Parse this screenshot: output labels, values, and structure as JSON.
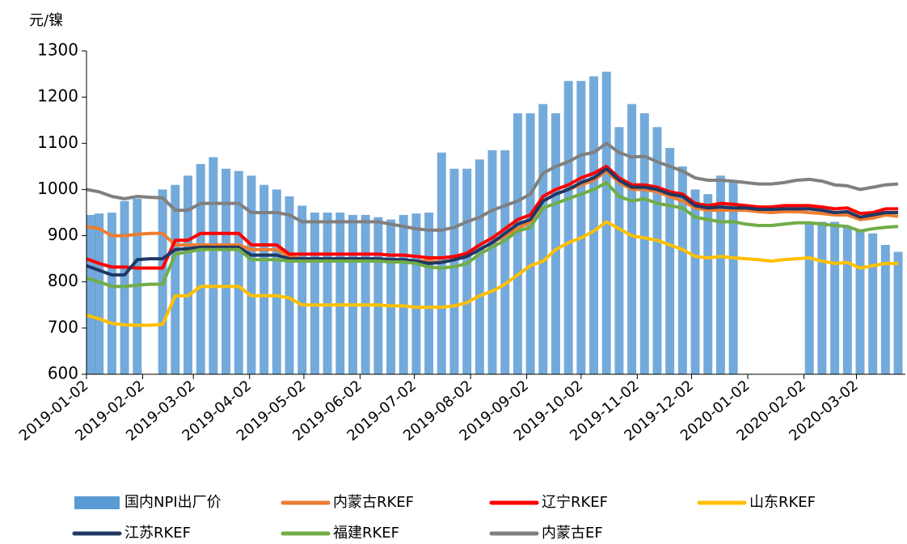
{
  "chart_data": {
    "type": "bar-line",
    "y_label": "元/镍",
    "x": [
      "2019-01-02",
      "2019-01-09",
      "2019-01-16",
      "2019-01-23",
      "2019-01-30",
      "2019-02-06",
      "2019-02-13",
      "2019-02-20",
      "2019-02-27",
      "2019-03-06",
      "2019-03-13",
      "2019-03-20",
      "2019-03-27",
      "2019-04-03",
      "2019-04-10",
      "2019-04-17",
      "2019-04-24",
      "2019-05-01",
      "2019-05-08",
      "2019-05-15",
      "2019-05-22",
      "2019-05-29",
      "2019-06-05",
      "2019-06-12",
      "2019-06-19",
      "2019-06-26",
      "2019-07-03",
      "2019-07-10",
      "2019-07-17",
      "2019-07-24",
      "2019-07-31",
      "2019-08-07",
      "2019-08-14",
      "2019-08-21",
      "2019-08-28",
      "2019-09-04",
      "2019-09-11",
      "2019-09-18",
      "2019-09-25",
      "2019-10-02",
      "2019-10-09",
      "2019-10-16",
      "2019-10-23",
      "2019-10-30",
      "2019-11-06",
      "2019-11-13",
      "2019-11-20",
      "2019-11-27",
      "2019-12-04",
      "2019-12-11",
      "2019-12-18",
      "2019-12-25",
      "2020-01-01",
      "2020-01-08",
      "2020-01-15",
      "2020-01-22",
      "2020-01-29",
      "2020-02-05",
      "2020-02-12",
      "2020-02-19",
      "2020-02-26",
      "2020-03-04",
      "2020-03-11",
      "2020-03-18",
      "2020-03-25"
    ],
    "series": [
      {
        "name": "国内NPI出厂价",
        "kind": "bar",
        "color": "#5b9bd5",
        "values": [
          945,
          948,
          950,
          975,
          980,
          null,
          1000,
          1010,
          1030,
          1055,
          1070,
          1045,
          1040,
          1030,
          1010,
          1000,
          985,
          965,
          950,
          950,
          950,
          945,
          945,
          940,
          935,
          945,
          948,
          950,
          1080,
          1045,
          1045,
          1065,
          1085,
          1085,
          1165,
          1165,
          1185,
          1165,
          1235,
          1235,
          1245,
          1255,
          1135,
          1185,
          1165,
          1135,
          1090,
          1050,
          1000,
          990,
          1030,
          1020,
          null,
          null,
          null,
          null,
          null,
          930,
          930,
          930,
          920,
          910,
          905,
          880,
          865
        ]
      },
      {
        "name": "内蒙古RKEF",
        "kind": "line",
        "color": "#ed7d31",
        "values": [
          920,
          915,
          900,
          900,
          903,
          905,
          905,
          880,
          880,
          880,
          880,
          880,
          880,
          870,
          870,
          870,
          855,
          850,
          850,
          850,
          850,
          850,
          850,
          850,
          848,
          848,
          845,
          845,
          843,
          848,
          855,
          870,
          885,
          900,
          915,
          930,
          975,
          990,
          1000,
          1010,
          1020,
          1040,
          1015,
          1000,
          1000,
          995,
          985,
          975,
          960,
          955,
          955,
          955,
          955,
          952,
          950,
          952,
          952,
          950,
          948,
          945,
          945,
          935,
          938,
          945,
          942
        ]
      },
      {
        "name": "辽宁RKEF",
        "kind": "line",
        "color": "#ff0000",
        "values": [
          850,
          840,
          832,
          832,
          830,
          830,
          830,
          890,
          890,
          905,
          905,
          905,
          905,
          880,
          880,
          880,
          860,
          860,
          860,
          860,
          860,
          860,
          860,
          860,
          858,
          858,
          855,
          852,
          852,
          855,
          862,
          880,
          895,
          915,
          935,
          945,
          985,
          1000,
          1010,
          1025,
          1035,
          1050,
          1025,
          1010,
          1010,
          1005,
          995,
          990,
          970,
          965,
          970,
          968,
          965,
          962,
          962,
          965,
          965,
          965,
          962,
          958,
          960,
          948,
          950,
          958,
          958
        ]
      },
      {
        "name": "山东RKEF",
        "kind": "line",
        "color": "#ffc000",
        "values": [
          728,
          720,
          710,
          707,
          706,
          706,
          708,
          770,
          770,
          790,
          790,
          790,
          790,
          770,
          770,
          770,
          765,
          750,
          750,
          750,
          750,
          750,
          750,
          750,
          748,
          748,
          745,
          745,
          745,
          748,
          755,
          770,
          780,
          795,
          815,
          835,
          845,
          870,
          885,
          895,
          910,
          930,
          915,
          900,
          895,
          890,
          880,
          870,
          855,
          852,
          855,
          852,
          850,
          848,
          845,
          848,
          850,
          852,
          845,
          840,
          842,
          830,
          835,
          840,
          840
        ]
      },
      {
        "name": "江苏RKEF",
        "kind": "line",
        "color": "#1f3864",
        "values": [
          835,
          825,
          815,
          815,
          848,
          850,
          850,
          870,
          872,
          875,
          875,
          875,
          875,
          858,
          858,
          858,
          850,
          850,
          850,
          850,
          850,
          850,
          850,
          850,
          848,
          848,
          845,
          840,
          842,
          848,
          855,
          870,
          885,
          905,
          925,
          935,
          975,
          990,
          1000,
          1015,
          1025,
          1045,
          1020,
          1005,
          1005,
          1000,
          990,
          985,
          965,
          960,
          962,
          960,
          960,
          957,
          957,
          958,
          958,
          958,
          955,
          950,
          952,
          940,
          945,
          950,
          950
        ]
      },
      {
        "name": "福建RKEF",
        "kind": "line",
        "color": "#70ad47",
        "values": [
          808,
          800,
          790,
          790,
          793,
          795,
          795,
          860,
          865,
          870,
          870,
          870,
          870,
          848,
          848,
          848,
          845,
          845,
          845,
          845,
          845,
          845,
          845,
          845,
          843,
          843,
          840,
          832,
          830,
          833,
          840,
          860,
          875,
          890,
          910,
          918,
          960,
          970,
          980,
          990,
          1000,
          1015,
          985,
          975,
          980,
          970,
          965,
          960,
          940,
          935,
          930,
          930,
          925,
          922,
          922,
          925,
          928,
          928,
          925,
          922,
          920,
          910,
          915,
          918,
          920
        ]
      },
      {
        "name": "内蒙古EF",
        "kind": "line",
        "color": "#808080",
        "values": [
          1000,
          995,
          985,
          980,
          985,
          983,
          982,
          955,
          955,
          970,
          970,
          970,
          970,
          950,
          950,
          950,
          945,
          930,
          930,
          930,
          930,
          930,
          930,
          930,
          925,
          920,
          915,
          912,
          912,
          918,
          930,
          940,
          955,
          965,
          975,
          990,
          1035,
          1050,
          1060,
          1075,
          1080,
          1100,
          1080,
          1070,
          1072,
          1060,
          1050,
          1040,
          1025,
          1020,
          1020,
          1018,
          1015,
          1012,
          1012,
          1015,
          1020,
          1022,
          1018,
          1010,
          1008,
          1000,
          1005,
          1010,
          1012
        ]
      }
    ],
    "xlim": [
      "2019-01-02",
      "2020-03-29"
    ],
    "xticks": [
      "2019-01-02",
      "2019-02-02",
      "2019-03-02",
      "2019-04-02",
      "2019-05-02",
      "2019-06-02",
      "2019-07-02",
      "2019-08-02",
      "2019-09-02",
      "2019-10-02",
      "2019-11-02",
      "2019-12-02",
      "2020-01-02",
      "2020-02-02",
      "2020-03-02"
    ],
    "ylim": [
      600,
      1300
    ],
    "yticks": [
      600,
      700,
      800,
      900,
      1000,
      1100,
      1200,
      1300
    ],
    "legend": "bottom"
  }
}
